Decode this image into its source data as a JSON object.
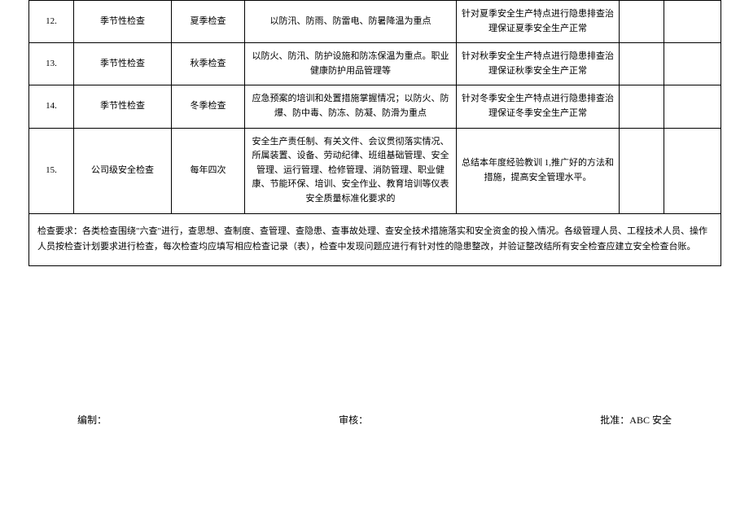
{
  "table": {
    "rows": [
      {
        "num": "12.",
        "type": "季节性检查",
        "name": "夏季检查",
        "content": "以防汛、防雨、防雷电、防暑降温为重点",
        "purpose": "针对夏季安全生产特点进行隐患排查治理保证夏季安全生产正常",
        "e1": "",
        "e2": ""
      },
      {
        "num": "13.",
        "type": "季节性检查",
        "name": "秋季检查",
        "content": "以防火、防汛、防护设施和防冻保温为重点。职业健康防护用品管理等",
        "purpose": "针对秋季安全生产特点进行隐患排查治理保证秋季安全生产正常",
        "e1": "",
        "e2": ""
      },
      {
        "num": "14.",
        "type": "季节性检查",
        "name": "冬季检查",
        "content": "应急预案的培训和处置措施掌握情况；以防火、防爆、防中毒、防冻、防凝、防滑为重点",
        "purpose": "针对冬季安全生产特点进行隐患排查治理保证冬季安全生产正常",
        "e1": "",
        "e2": ""
      },
      {
        "num": "15.",
        "type": "公司级安全检查",
        "name": "每年四次",
        "content": "安全生产责任制、有关文件、会议贯彻落实情况、所属装置、设备、劳动纪律、班组基础管理、安全管理、运行管理、检修管理、消防管理、职业健康、节能环保、培训、安全作业、教育培训等仪表安全质量标准化要求的",
        "purpose": "总结本年度经验教训 1,推广好的方法和措施，提高安全管理水平。",
        "e1": "",
        "e2": ""
      }
    ],
    "note": "检查要求：各类检查围绕\"六查\"进行，查思想、查制度、查管理、查隐患、查事故处理、查安全技术措施落实和安全资金的投入情况。各级管理人员、工程技术人员、操作人员按检查计划要求进行检查，每次检查均应填写相应检查记录（表），检查中发现问题应进行有针对性的隐患整改，并验证整改结所有安全检查应建立安全检查台账。"
  },
  "signatures": {
    "compile_label": "编制：",
    "review_label": "审核：",
    "approve_label": "批准：",
    "approve_value": "ABC 安全"
  }
}
